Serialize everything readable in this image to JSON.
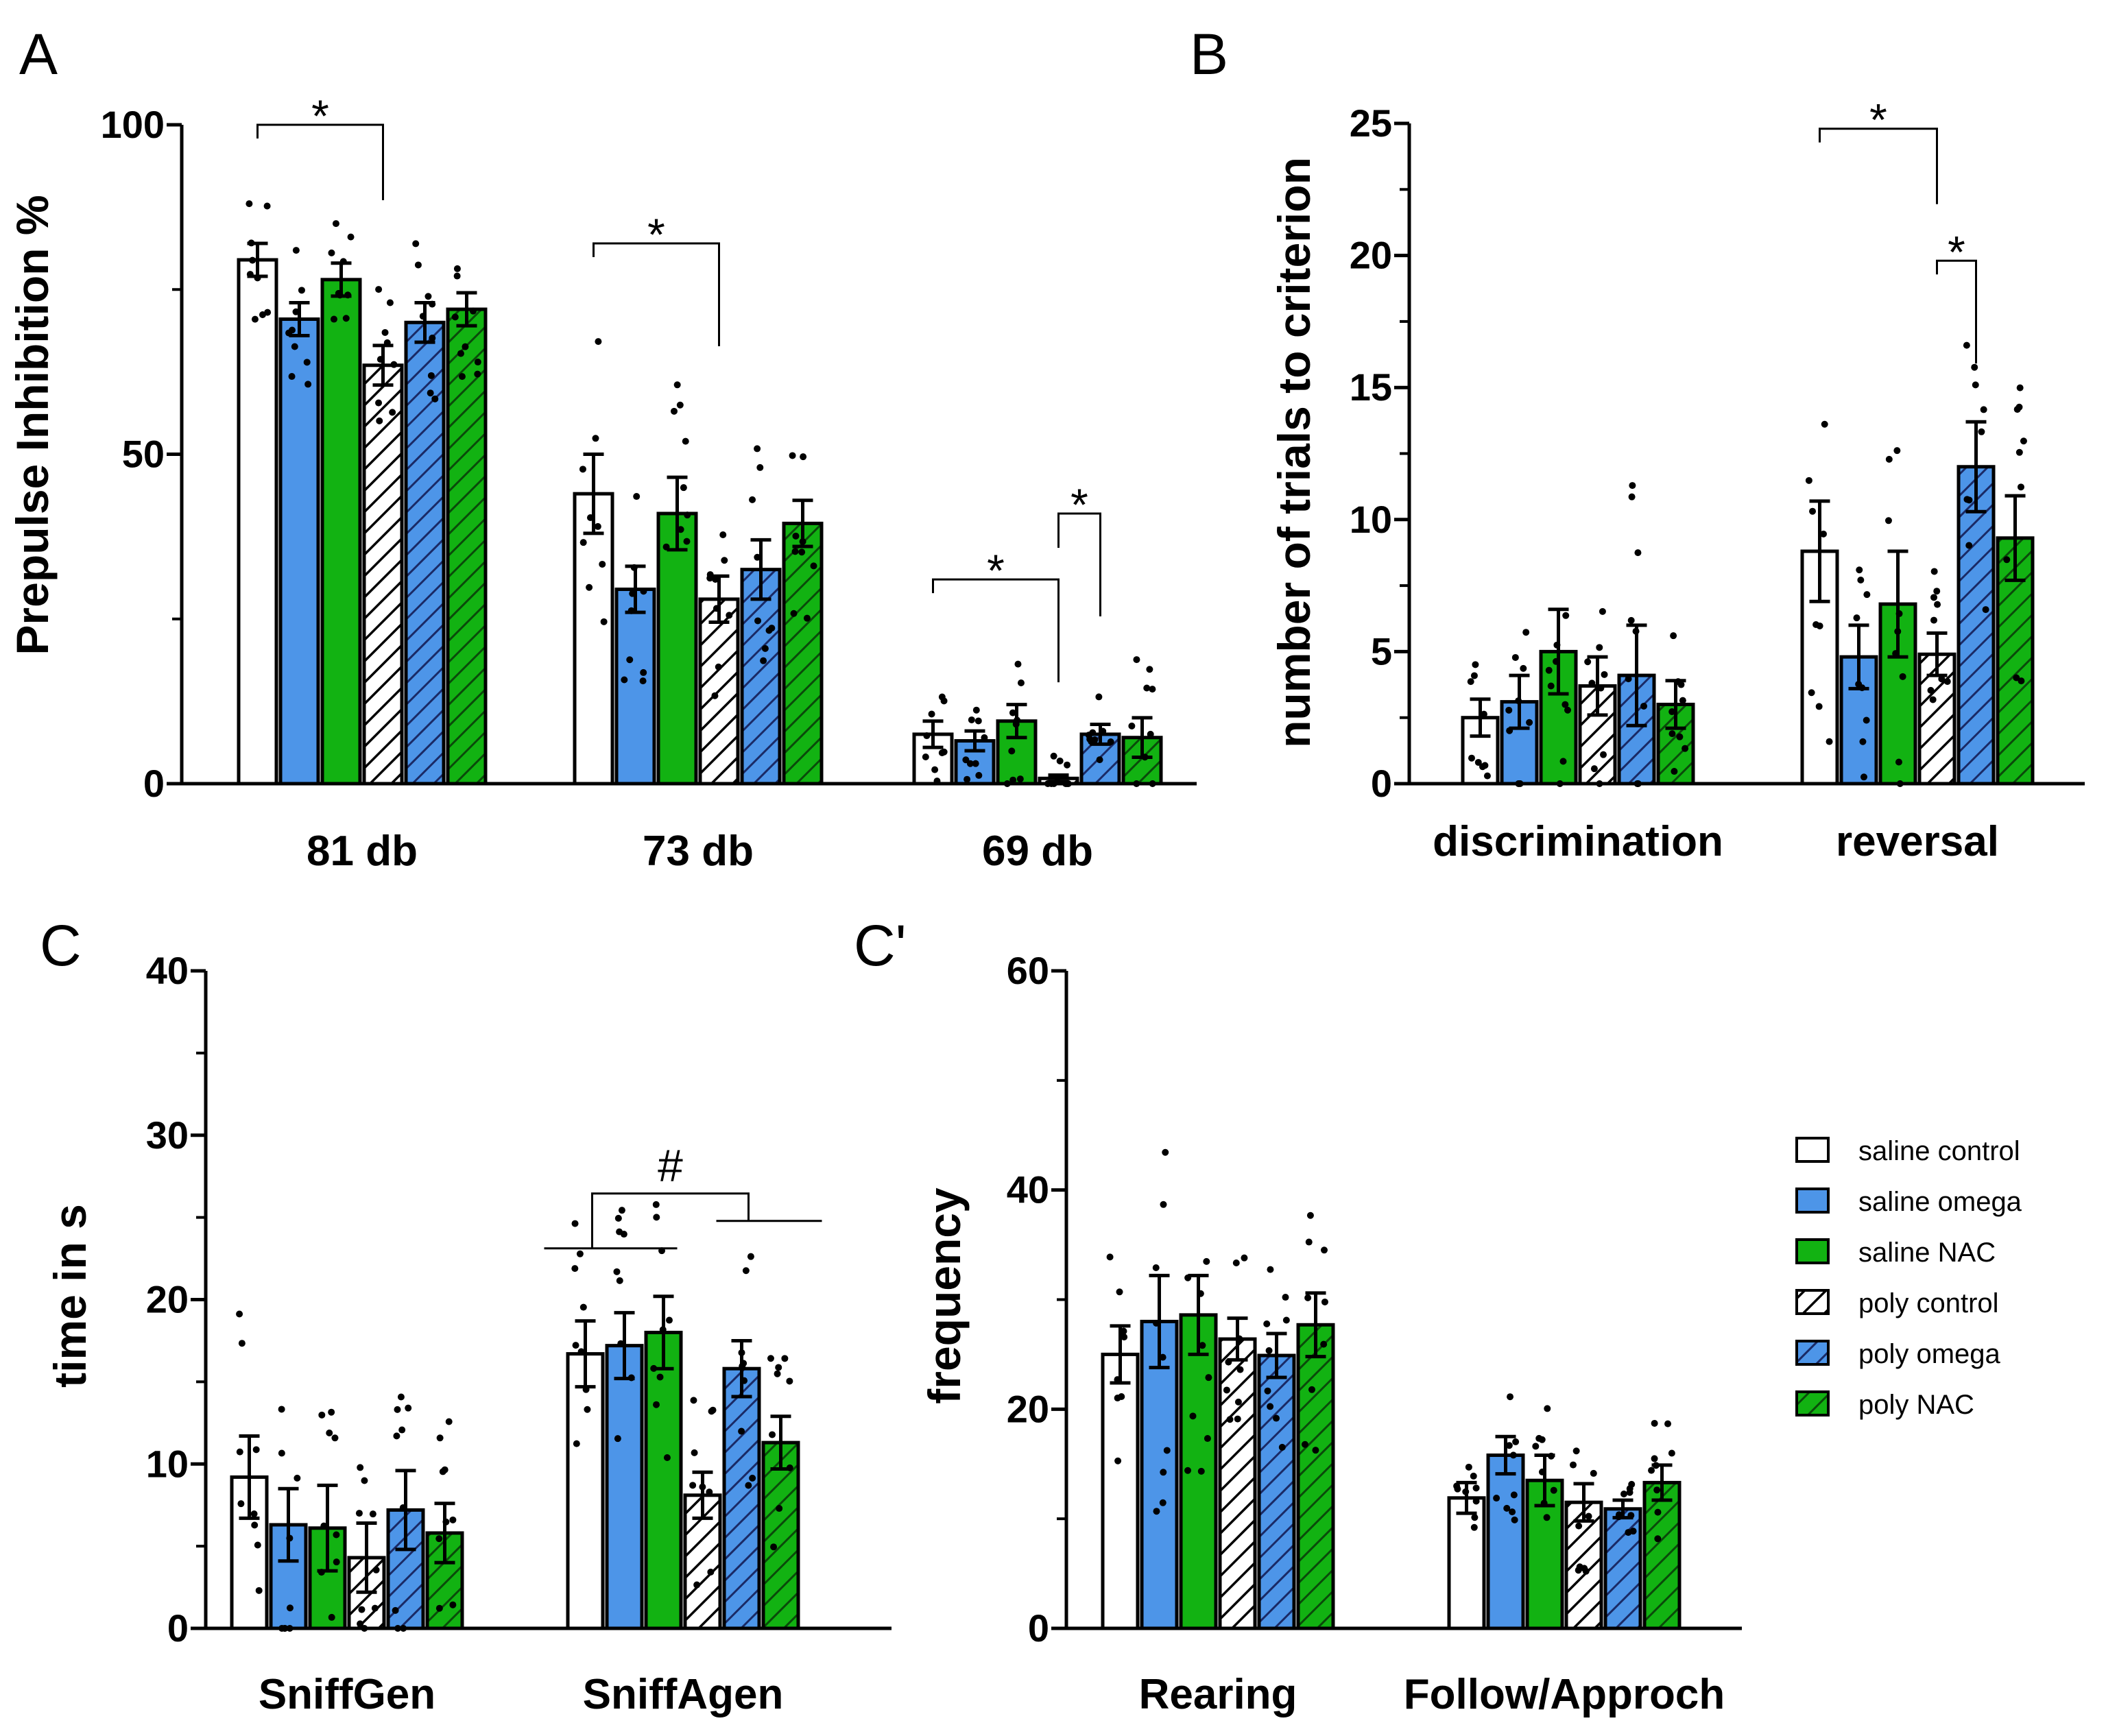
{
  "groups": [
    {
      "name": "saline control",
      "color": "#ffffff",
      "hatch": false
    },
    {
      "name": "saline omega",
      "color": "#4d95e8",
      "hatch": false
    },
    {
      "name": "saline NAC",
      "color": "#12b212",
      "hatch": false
    },
    {
      "name": "poly control",
      "color": "#ffffff",
      "hatch": true
    },
    {
      "name": "poly omega",
      "color": "#4d95e8",
      "hatch": true
    },
    {
      "name": "poly NAC",
      "color": "#12b212",
      "hatch": true
    }
  ],
  "chart_data": [
    {
      "id": "A",
      "panel_label": "A",
      "type": "bar",
      "ylabel": "Prepulse Inhibition %",
      "ylim": [
        0,
        100
      ],
      "yticks": [
        "0",
        "50",
        "100"
      ],
      "categories": [
        "81 db",
        "73 db",
        "69 db"
      ],
      "series": [
        {
          "name": "saline control",
          "values": [
            79.5,
            44,
            7.5
          ],
          "errors": [
            2.5,
            6,
            2
          ]
        },
        {
          "name": "saline omega",
          "values": [
            70.5,
            29.5,
            6.5
          ],
          "errors": [
            2.5,
            3.5,
            1.5
          ]
        },
        {
          "name": "saline NAC",
          "values": [
            76.5,
            41,
            9.5
          ],
          "errors": [
            2.5,
            5.5,
            2.5
          ]
        },
        {
          "name": "poly control",
          "values": [
            63.5,
            28,
            0.8
          ],
          "errors": [
            3,
            3.5,
            0.5
          ]
        },
        {
          "name": "poly omega",
          "values": [
            70,
            32.5,
            7.5
          ],
          "errors": [
            3,
            4.5,
            1.5
          ]
        },
        {
          "name": "poly NAC",
          "values": [
            72,
            39.5,
            7
          ],
          "errors": [
            2.5,
            3.5,
            3
          ]
        }
      ],
      "significance": [
        {
          "label": "*",
          "category": "81 db",
          "from": "saline control",
          "to": "poly control"
        },
        {
          "label": "*",
          "category": "73 db",
          "from": "saline control",
          "to": "poly control"
        },
        {
          "label": "*",
          "category": "69 db",
          "from": "saline control",
          "to": "poly control"
        },
        {
          "label": "*",
          "category": "69 db",
          "from": "poly control",
          "to": "poly omega"
        }
      ]
    },
    {
      "id": "B",
      "panel_label": "B",
      "type": "bar",
      "ylabel": "number of trials to criterion",
      "ylim": [
        0,
        25
      ],
      "yticks": [
        "0",
        "5",
        "10",
        "15",
        "20",
        "25"
      ],
      "categories": [
        "discrimination",
        "reversal"
      ],
      "series": [
        {
          "name": "saline control",
          "values": [
            2.5,
            8.8
          ],
          "errors": [
            0.7,
            1.9
          ]
        },
        {
          "name": "saline omega",
          "values": [
            3.1,
            4.8
          ],
          "errors": [
            1.0,
            1.2
          ]
        },
        {
          "name": "saline NAC",
          "values": [
            5.0,
            6.8
          ],
          "errors": [
            1.6,
            2.0
          ]
        },
        {
          "name": "poly control",
          "values": [
            3.7,
            4.9
          ],
          "errors": [
            1.1,
            0.8
          ]
        },
        {
          "name": "poly omega",
          "values": [
            4.1,
            12.0
          ],
          "errors": [
            1.9,
            1.7
          ]
        },
        {
          "name": "poly NAC",
          "values": [
            3.0,
            9.3
          ],
          "errors": [
            0.9,
            1.6
          ]
        }
      ],
      "significance": [
        {
          "label": "*",
          "category": "reversal",
          "from": "saline control",
          "to": "poly control"
        },
        {
          "label": "*",
          "category": "reversal",
          "from": "poly control",
          "to": "poly omega"
        }
      ]
    },
    {
      "id": "C",
      "panel_label": "C",
      "type": "bar",
      "ylabel": "time in s",
      "ylim": [
        0,
        40
      ],
      "yticks": [
        "0",
        "10",
        "20",
        "30",
        "40"
      ],
      "categories": [
        "SniffGen",
        "SniffAgen"
      ],
      "series": [
        {
          "name": "saline control",
          "values": [
            9.2,
            16.7
          ],
          "errors": [
            2.5,
            2.0
          ]
        },
        {
          "name": "saline omega",
          "values": [
            6.3,
            17.2
          ],
          "errors": [
            2.2,
            2.0
          ]
        },
        {
          "name": "saline NAC",
          "values": [
            6.1,
            18.0
          ],
          "errors": [
            2.6,
            2.2
          ]
        },
        {
          "name": "poly control",
          "values": [
            4.3,
            8.1
          ],
          "errors": [
            2.1,
            1.4
          ]
        },
        {
          "name": "poly omega",
          "values": [
            7.2,
            15.8
          ],
          "errors": [
            2.4,
            1.7
          ]
        },
        {
          "name": "poly NAC",
          "values": [
            5.8,
            11.3
          ],
          "errors": [
            1.8,
            1.6
          ]
        }
      ],
      "significance": [
        {
          "label": "#",
          "category": "SniffAgen",
          "note": "saline groups vs poly groups"
        }
      ]
    },
    {
      "id": "C2",
      "panel_label": "C'",
      "type": "bar",
      "ylabel": "frequency",
      "ylim": [
        0,
        60
      ],
      "yticks": [
        "0",
        "20",
        "40",
        "60"
      ],
      "categories": [
        "Rearing",
        "Follow/Approch"
      ],
      "series": [
        {
          "name": "saline control",
          "values": [
            25.0,
            11.9
          ],
          "errors": [
            2.6,
            1.4
          ]
        },
        {
          "name": "saline omega",
          "values": [
            28.0,
            15.8
          ],
          "errors": [
            4.2,
            1.7
          ]
        },
        {
          "name": "saline NAC",
          "values": [
            28.6,
            13.5
          ],
          "errors": [
            3.6,
            2.3
          ]
        },
        {
          "name": "poly control",
          "values": [
            26.4,
            11.5
          ],
          "errors": [
            1.9,
            1.7
          ]
        },
        {
          "name": "poly omega",
          "values": [
            24.9,
            10.9
          ],
          "errors": [
            2.0,
            0.8
          ]
        },
        {
          "name": "poly NAC",
          "values": [
            27.7,
            13.3
          ],
          "errors": [
            2.9,
            1.6
          ]
        }
      ],
      "significance": []
    }
  ]
}
